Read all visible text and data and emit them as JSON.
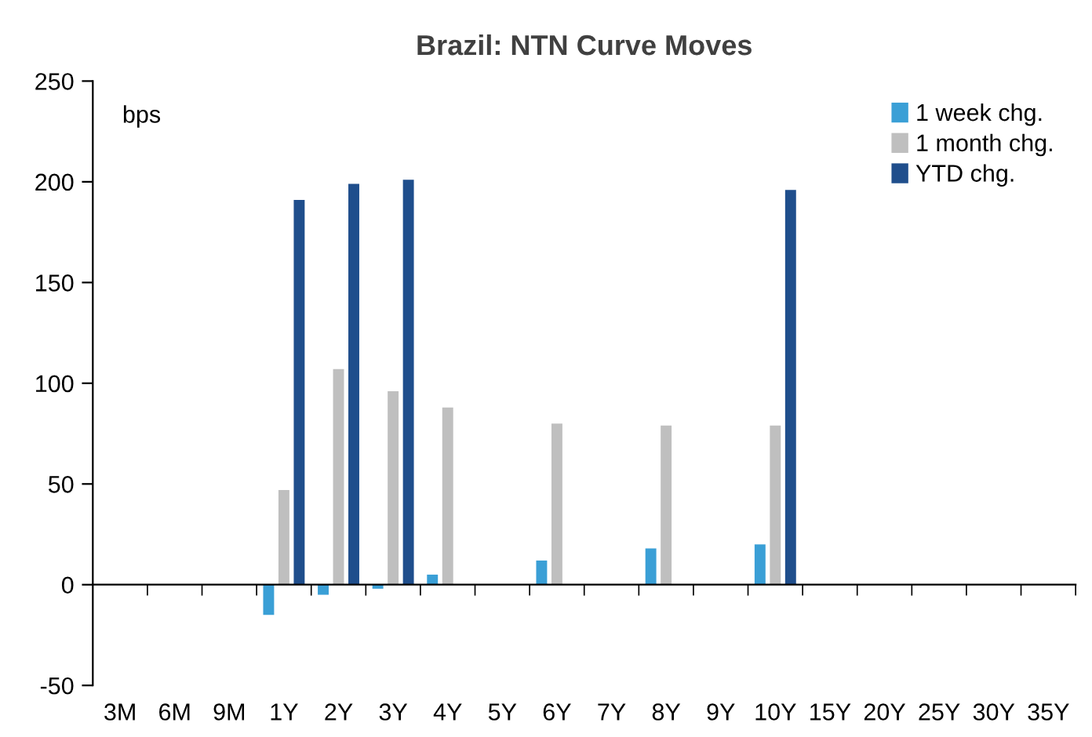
{
  "chart_data": {
    "type": "bar",
    "title": "Brazil: NTN Curve Moves",
    "categories": [
      "3M",
      "6M",
      "9M",
      "1Y",
      "2Y",
      "3Y",
      "4Y",
      "5Y",
      "6Y",
      "7Y",
      "8Y",
      "9Y",
      "10Y",
      "15Y",
      "20Y",
      "25Y",
      "30Y",
      "35Y"
    ],
    "series": [
      {
        "name": "1 week chg.",
        "color": "#3a9fd6",
        "values": [
          null,
          null,
          null,
          -15,
          -5,
          -2,
          5,
          null,
          12,
          null,
          18,
          null,
          20,
          null,
          null,
          null,
          null,
          null
        ]
      },
      {
        "name": "1 month chg.",
        "color": "#bfbfbf",
        "values": [
          null,
          null,
          null,
          47,
          107,
          96,
          88,
          null,
          80,
          null,
          79,
          null,
          79,
          null,
          null,
          null,
          null,
          null
        ]
      },
      {
        "name": "YTD chg.",
        "color": "#1f4e8c",
        "values": [
          null,
          null,
          null,
          191,
          199,
          201,
          null,
          null,
          null,
          null,
          null,
          null,
          196,
          null,
          null,
          null,
          null,
          null
        ]
      }
    ],
    "ylim": [
      -50,
      250
    ],
    "yticks": [
      -50,
      0,
      50,
      100,
      150,
      200,
      250
    ],
    "annotations": [
      "bps"
    ],
    "legend": "top right"
  }
}
